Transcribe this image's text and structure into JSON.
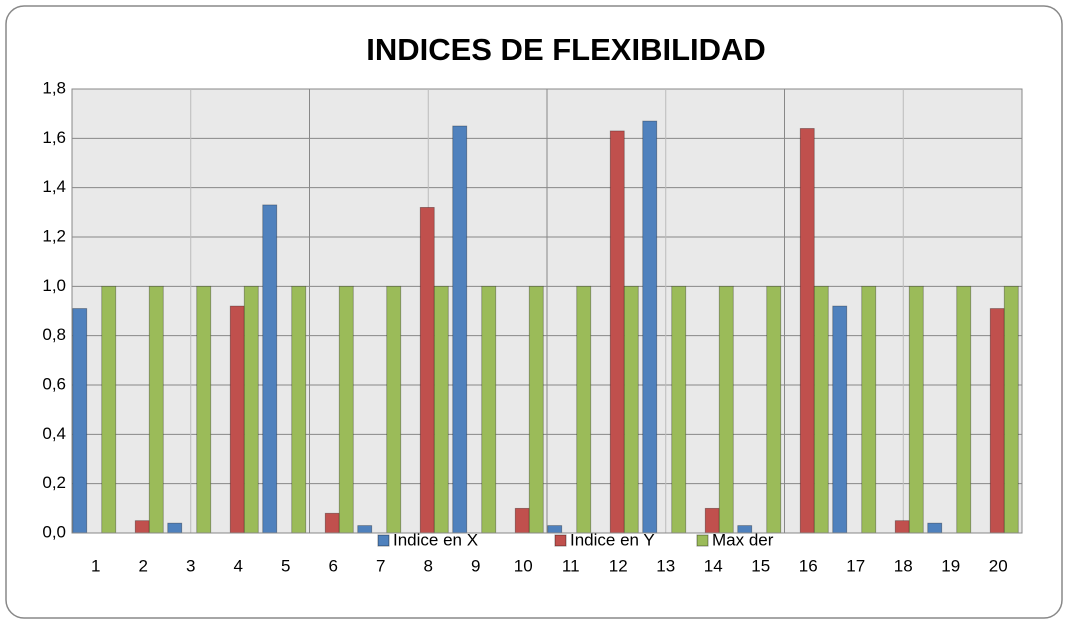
{
  "chart_data": {
    "type": "bar",
    "title": "INDICES DE FLEXIBILIDAD",
    "categories": [
      "1",
      "2",
      "3",
      "4",
      "5",
      "6",
      "7",
      "8",
      "9",
      "10",
      "11",
      "12",
      "13",
      "14",
      "15",
      "16",
      "17",
      "18",
      "19",
      "20"
    ],
    "series": [
      {
        "name": "Indice en X",
        "color": "#4f81bd",
        "values": [
          0.91,
          0,
          0.04,
          0,
          1.33,
          0,
          0.03,
          0,
          1.65,
          0,
          0.03,
          0,
          1.67,
          0,
          0.03,
          0,
          0.92,
          0,
          0.04,
          0
        ]
      },
      {
        "name": "Indice en Y",
        "color": "#c0504d",
        "values": [
          0,
          0.05,
          0,
          0.92,
          0,
          0.08,
          0,
          1.32,
          0,
          0.1,
          0,
          1.63,
          0,
          0.1,
          0,
          1.64,
          0,
          0.05,
          0,
          0.91
        ]
      },
      {
        "name": "Max der",
        "color": "#9bbb59",
        "values": [
          1,
          1,
          1,
          1,
          1,
          1,
          1,
          1,
          1,
          1,
          1,
          1,
          1,
          1,
          1,
          1,
          1,
          1,
          1,
          1
        ]
      }
    ],
    "ylim": [
      0,
      1.8
    ],
    "yticks": [
      {
        "value": 0,
        "label": "0,0"
      },
      {
        "value": 0.2,
        "label": "0,2"
      },
      {
        "value": 0.4,
        "label": "0,4"
      },
      {
        "value": 0.6,
        "label": "0,6"
      },
      {
        "value": 0.8,
        "label": "0,8"
      },
      {
        "value": 1,
        "label": "1,0"
      },
      {
        "value": 1.2,
        "label": "1,2"
      },
      {
        "value": 1.4,
        "label": "1,4"
      },
      {
        "value": 1.6,
        "label": "1,6"
      },
      {
        "value": 1.8,
        "label": "1,8"
      }
    ],
    "grid": true,
    "legend": "bottom"
  }
}
